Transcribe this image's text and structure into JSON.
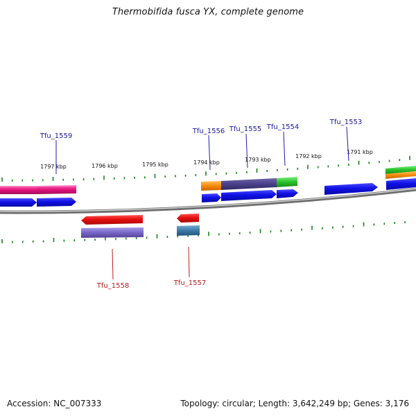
{
  "title": "Thermobifida fusca YX, complete genome",
  "footer": {
    "accession": "Accession: NC_007333",
    "topology": "Topology: circular; Length: 3,642,249 bp; Genes: 3,176"
  },
  "colors": {
    "backbone": "#7d7d7d",
    "backbone_light": "#d8d8d8",
    "tick": "#1a7f1a",
    "forward_gene": "#1010e6",
    "reverse_gene": "#e60f0f",
    "forward_label": "#17179a",
    "reverse_label": "#b21b1b",
    "pink": "#e0127a",
    "orange": "#f58a0b",
    "purple": "#4a3f8a",
    "green": "#29c12a",
    "lavender": "#7866c7",
    "steel_blue": "#3b79a8"
  },
  "scale_labels": [
    "1797 kbp",
    "1796 kbp",
    "1795 kbp",
    "1794 kbp",
    "1793 kbp",
    "1792 kbp",
    "1791 kbp"
  ],
  "gene_labels": [
    {
      "text": "Tfu_1559",
      "strand": "forward"
    },
    {
      "text": "Tfu_1558",
      "strand": "reverse"
    },
    {
      "text": "Tfu_1557",
      "strand": "reverse"
    },
    {
      "text": "Tfu_1556",
      "strand": "forward"
    },
    {
      "text": "Tfu_1555",
      "strand": "forward"
    },
    {
      "text": "Tfu_1554",
      "strand": "forward"
    },
    {
      "text": "Tfu_1553",
      "strand": "forward"
    }
  ]
}
